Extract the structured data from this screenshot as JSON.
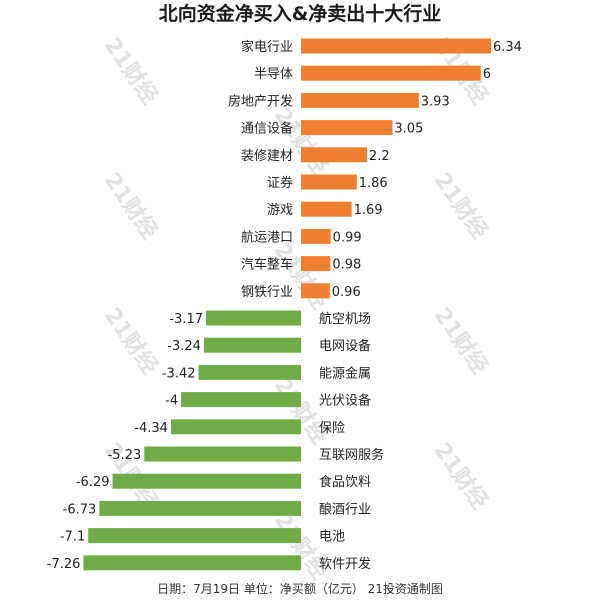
{
  "chart_data": {
    "type": "bar",
    "orientation": "horizontal",
    "title": "北向资金净买入&净卖出十大行业",
    "categories": [
      "家电行业",
      "半导体",
      "房地产开发",
      "通信设备",
      "装修建材",
      "证券",
      "游戏",
      "航运港口",
      "汽车整车",
      "钢铁行业",
      "航空机场",
      "电网设备",
      "能源金属",
      "光伏设备",
      "保险",
      "互联网服务",
      "食品饮料",
      "酿酒行业",
      "电池",
      "软件开发"
    ],
    "values": [
      6.34,
      6,
      3.93,
      3.05,
      2.2,
      1.86,
      1.69,
      0.99,
      0.98,
      0.96,
      -3.17,
      -3.24,
      -3.42,
      -4,
      -4.34,
      -5.23,
      -6.29,
      -6.73,
      -7.1,
      -7.26
    ],
    "value_labels": [
      "6.34",
      "6",
      "3.93",
      "3.05",
      "2.2",
      "1.86",
      "1.69",
      "0.99",
      "0.98",
      "0.96",
      "-3.17",
      "-3.24",
      "-3.42",
      "-4",
      "-4.34",
      "-5.23",
      "-6.29",
      "-6.73",
      "-7.1",
      "-7.26"
    ],
    "positive_color": "#f07f2f",
    "negative_color": "#6fac45",
    "xlim": [
      -7.26,
      6.34
    ],
    "grid": false,
    "legend": "none"
  },
  "footer": "日期：7月19日 单位：净买额（亿元） 21投资通制图",
  "watermark": "21财经"
}
